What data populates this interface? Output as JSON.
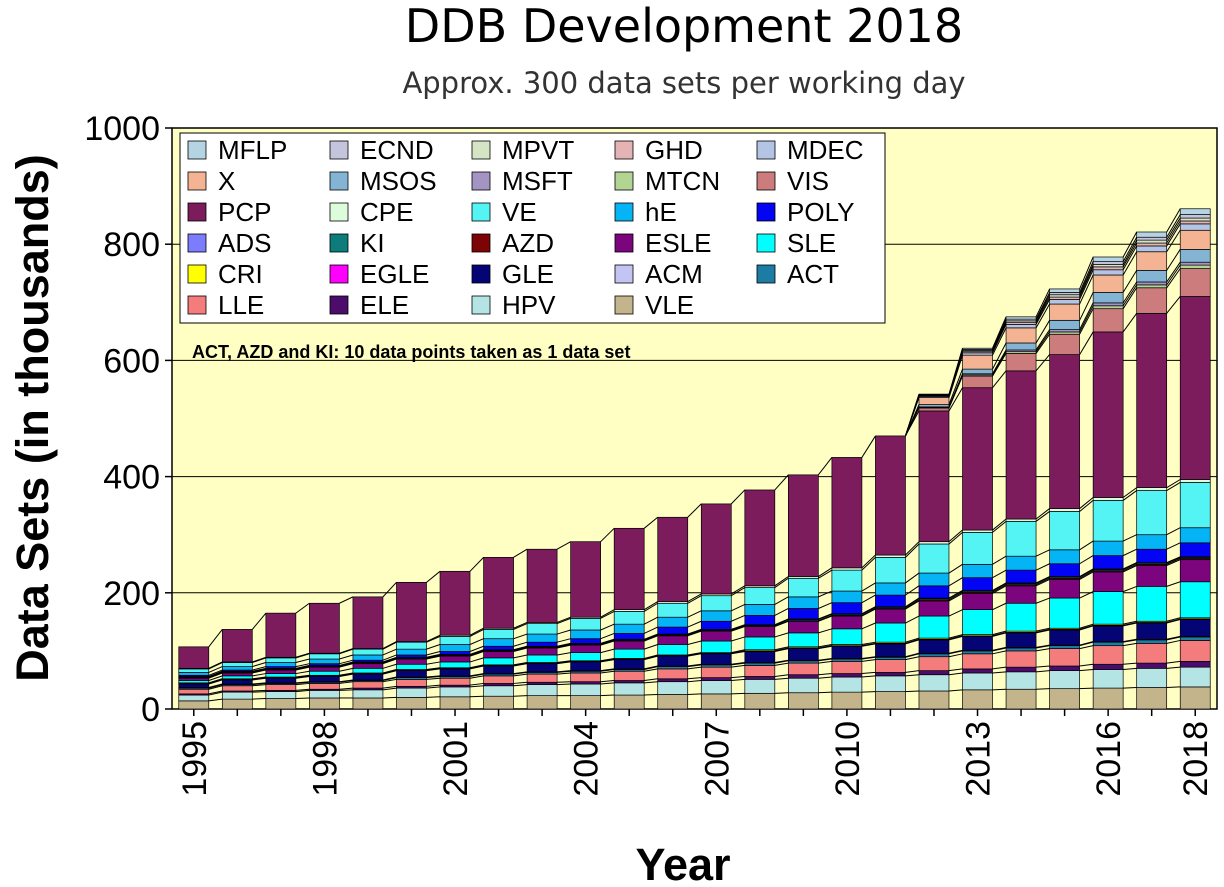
{
  "chart_data": {
    "type": "bar",
    "title": "DDB Development 2018",
    "subtitle": "Approx. 300 data sets per working day",
    "xlabel": "Year",
    "ylabel": "Data Sets (in thousands)",
    "ylim": [
      0,
      1000
    ],
    "yticks": [
      "0",
      "200",
      "400",
      "600",
      "800",
      "1000"
    ],
    "xtick_labels": [
      "1995",
      "1998",
      "2001",
      "2004",
      "2007",
      "2010",
      "2013",
      "2016",
      "2018"
    ],
    "grid": true,
    "stacked": true,
    "legend_position": "top-left",
    "note": "ACT, AZD  and KI: 10 data points taken as 1 data set",
    "categories": [
      "1995",
      "1996",
      "1997",
      "1998",
      "1999",
      "2000",
      "2001",
      "2002",
      "2003",
      "2004",
      "2005",
      "2006",
      "2007",
      "2008",
      "2009",
      "2010",
      "2011",
      "2012",
      "2013",
      "2014",
      "2015",
      "2016",
      "2017",
      "2018"
    ],
    "legend_order": [
      "MFLP",
      "ECND",
      "MPVT",
      "GHD",
      "MDEC",
      "X",
      "MSOS",
      "MSFT",
      "MTCN",
      "VIS",
      "PCP",
      "CPE",
      "VE",
      "hE",
      "POLY",
      "ADS",
      "KI",
      "AZD",
      "ESLE",
      "SLE",
      "CRI",
      "EGLE",
      "GLE",
      "ACM",
      "ACT",
      "LLE",
      "ELE",
      "HPV",
      "VLE"
    ],
    "series": [
      {
        "name": "VLE",
        "color": "#c4b48c",
        "values": [
          14,
          17,
          18,
          19,
          19,
          20,
          21,
          22,
          23,
          23,
          24,
          25,
          26,
          27,
          28,
          29,
          30,
          31,
          33,
          34,
          35,
          36,
          37,
          38
        ]
      },
      {
        "name": "HPV",
        "color": "#b4e4e4",
        "values": [
          10,
          12,
          12,
          13,
          14,
          16,
          17,
          18,
          19,
          20,
          21,
          22,
          23,
          24,
          25,
          26,
          27,
          28,
          29,
          30,
          31,
          32,
          33,
          34
        ]
      },
      {
        "name": "ELE",
        "color": "#4c0c6c",
        "values": [
          2,
          2,
          2,
          2,
          3,
          3,
          3,
          4,
          4,
          4,
          4,
          5,
          5,
          5,
          6,
          6,
          6,
          7,
          7,
          8,
          8,
          9,
          9,
          10
        ]
      },
      {
        "name": "LLE",
        "color": "#f47c7c",
        "values": [
          8,
          9,
          10,
          10,
          11,
          12,
          12,
          13,
          14,
          15,
          16,
          17,
          18,
          19,
          20,
          21,
          22,
          24,
          26,
          28,
          30,
          32,
          34,
          36
        ]
      },
      {
        "name": "ACT",
        "color": "#1c7ca4",
        "values": [
          2,
          2,
          2,
          2,
          2,
          3,
          3,
          3,
          3,
          3,
          3,
          4,
          4,
          4,
          4,
          4,
          4,
          5,
          5,
          5,
          5,
          6,
          6,
          6
        ]
      },
      {
        "name": "ACM",
        "color": "#c4c4f4",
        "values": [
          1,
          1,
          1,
          1,
          1,
          1,
          1,
          1,
          1,
          1,
          1,
          1,
          1,
          1,
          1,
          1,
          1,
          1,
          1,
          1,
          1,
          1,
          1,
          1
        ]
      },
      {
        "name": "GLE",
        "color": "#040474",
        "values": [
          6,
          7,
          8,
          9,
          10,
          11,
          12,
          13,
          14,
          15,
          16,
          17,
          18,
          19,
          20,
          21,
          22,
          23,
          24,
          25,
          26,
          27,
          28,
          29
        ]
      },
      {
        "name": "EGLE",
        "color": "#ff00ff",
        "values": [
          1,
          1,
          1,
          1,
          1,
          1,
          1,
          1,
          1,
          1,
          1,
          1,
          1,
          1,
          1,
          1,
          1,
          1,
          1,
          1,
          1,
          1,
          1,
          1
        ]
      },
      {
        "name": "CRI",
        "color": "#ffff00",
        "values": [
          1,
          1,
          1,
          1,
          1,
          1,
          1,
          1,
          1,
          1,
          1,
          1,
          1,
          2,
          2,
          2,
          2,
          2,
          2,
          2,
          2,
          2,
          2,
          2
        ]
      },
      {
        "name": "SLE",
        "color": "#00ffff",
        "values": [
          4,
          5,
          6,
          7,
          8,
          9,
          10,
          12,
          13,
          14,
          16,
          18,
          20,
          22,
          24,
          27,
          33,
          38,
          43,
          48,
          52,
          56,
          60,
          62
        ]
      },
      {
        "name": "ESLE",
        "color": "#7c047c",
        "values": [
          4,
          5,
          6,
          7,
          8,
          9,
          10,
          11,
          12,
          13,
          14,
          15,
          17,
          18,
          20,
          22,
          24,
          26,
          28,
          30,
          32,
          34,
          36,
          38
        ]
      },
      {
        "name": "AZD",
        "color": "#7c0404",
        "values": [
          1,
          1,
          1,
          1,
          1,
          1,
          1,
          1,
          1,
          1,
          1,
          1,
          1,
          1,
          1,
          1,
          1,
          2,
          2,
          2,
          2,
          2,
          2,
          2
        ]
      },
      {
        "name": "KI",
        "color": "#0c7c7c",
        "values": [
          1,
          1,
          1,
          1,
          1,
          1,
          1,
          1,
          1,
          1,
          1,
          1,
          1,
          1,
          2,
          2,
          2,
          2,
          2,
          2,
          2,
          2,
          2,
          2
        ]
      },
      {
        "name": "ADS",
        "color": "#7c7cff",
        "values": [
          1,
          1,
          1,
          1,
          1,
          1,
          1,
          1,
          1,
          1,
          1,
          1,
          1,
          1,
          1,
          1,
          1,
          1,
          1,
          1,
          1,
          1,
          1,
          1
        ]
      },
      {
        "name": "POLY",
        "color": "#0404f4",
        "values": [
          2,
          2,
          3,
          3,
          3,
          4,
          5,
          6,
          7,
          8,
          10,
          12,
          14,
          16,
          18,
          19,
          20,
          21,
          22,
          22,
          22,
          23,
          23,
          24
        ]
      },
      {
        "name": "hE",
        "color": "#04b4f4",
        "values": [
          5,
          6,
          7,
          8,
          9,
          10,
          12,
          13,
          14,
          15,
          16,
          17,
          18,
          19,
          20,
          20,
          21,
          22,
          23,
          24,
          24,
          25,
          25,
          26
        ]
      },
      {
        "name": "VE",
        "color": "#54f4f4",
        "values": [
          6,
          7,
          8,
          9,
          10,
          12,
          14,
          16,
          18,
          20,
          22,
          24,
          26,
          29,
          32,
          36,
          44,
          50,
          55,
          60,
          66,
          70,
          76,
          78
        ]
      },
      {
        "name": "CPE",
        "color": "#dcfcdc",
        "values": [
          1,
          1,
          1,
          1,
          1,
          1,
          2,
          2,
          2,
          2,
          3,
          3,
          3,
          3,
          3,
          4,
          4,
          4,
          4,
          4,
          5,
          5,
          5,
          5
        ]
      },
      {
        "name": "PCP",
        "color": "#7c1c5c",
        "values": [
          37,
          56,
          76,
          86,
          89,
          102,
          110,
          122,
          126,
          130,
          140,
          145,
          155,
          165,
          175,
          190,
          205,
          225,
          245,
          255,
          265,
          285,
          300,
          315
        ]
      },
      {
        "name": "VIS",
        "color": "#cc7c7c",
        "values": [
          0,
          0,
          0,
          0,
          0,
          0,
          0,
          0,
          0,
          0,
          0,
          0,
          0,
          0,
          0,
          0,
          0,
          5,
          20,
          30,
          35,
          40,
          44,
          48
        ]
      },
      {
        "name": "MTCN",
        "color": "#b4d494",
        "values": [
          0,
          0,
          0,
          0,
          0,
          0,
          0,
          0,
          0,
          0,
          0,
          0,
          0,
          0,
          0,
          0,
          0,
          1,
          2,
          3,
          4,
          5,
          5,
          6
        ]
      },
      {
        "name": "MSFT",
        "color": "#a494c4",
        "values": [
          0,
          0,
          0,
          0,
          0,
          0,
          0,
          0,
          0,
          0,
          0,
          0,
          0,
          0,
          0,
          0,
          0,
          1,
          2,
          3,
          4,
          5,
          5,
          5
        ]
      },
      {
        "name": "MSOS",
        "color": "#84b4d4",
        "values": [
          0,
          0,
          0,
          0,
          0,
          0,
          0,
          0,
          0,
          0,
          0,
          0,
          0,
          0,
          0,
          0,
          0,
          4,
          8,
          12,
          16,
          18,
          20,
          22
        ]
      },
      {
        "name": "X",
        "color": "#f4b494",
        "values": [
          0,
          0,
          0,
          0,
          0,
          0,
          0,
          0,
          0,
          0,
          0,
          0,
          0,
          0,
          0,
          0,
          0,
          12,
          24,
          26,
          28,
          30,
          32,
          33
        ]
      },
      {
        "name": "MDEC",
        "color": "#b4c4e4",
        "values": [
          0,
          0,
          0,
          0,
          0,
          0,
          0,
          0,
          0,
          0,
          0,
          0,
          0,
          0,
          0,
          0,
          0,
          2,
          4,
          6,
          8,
          9,
          10,
          11
        ]
      },
      {
        "name": "GHD",
        "color": "#e4b4b4",
        "values": [
          0,
          0,
          0,
          0,
          0,
          0,
          0,
          0,
          0,
          0,
          0,
          0,
          0,
          0,
          0,
          0,
          0,
          1,
          2,
          3,
          4,
          5,
          5,
          5
        ]
      },
      {
        "name": "MPVT",
        "color": "#d4e4c4",
        "values": [
          0,
          0,
          0,
          0,
          0,
          0,
          0,
          0,
          0,
          0,
          0,
          0,
          0,
          0,
          0,
          0,
          0,
          1,
          2,
          3,
          4,
          4,
          5,
          5
        ]
      },
      {
        "name": "ECND",
        "color": "#c4c4dc",
        "values": [
          0,
          0,
          0,
          0,
          0,
          0,
          0,
          0,
          0,
          0,
          0,
          0,
          0,
          0,
          0,
          0,
          0,
          1,
          2,
          3,
          4,
          5,
          5,
          6
        ]
      },
      {
        "name": "MFLP",
        "color": "#b4d4e4",
        "values": [
          0,
          0,
          0,
          0,
          0,
          0,
          0,
          0,
          0,
          0,
          0,
          0,
          0,
          0,
          0,
          0,
          0,
          1,
          2,
          4,
          6,
          8,
          9,
          10
        ]
      }
    ]
  }
}
